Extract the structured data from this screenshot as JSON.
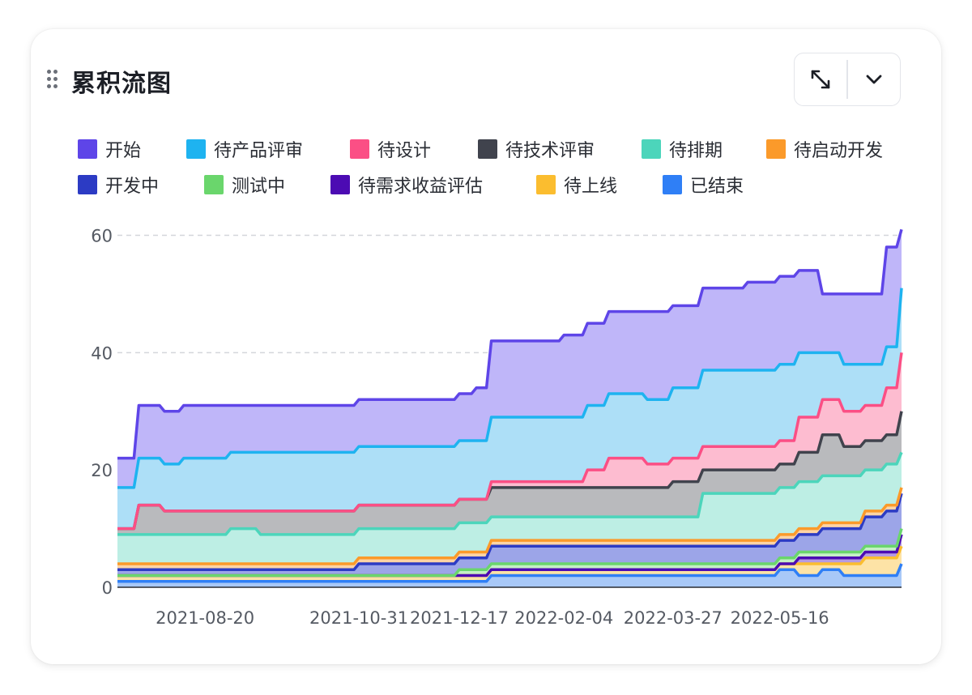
{
  "card": {
    "title": "累积流图"
  },
  "icons": {
    "drag": "drag-handle-icon",
    "expand": "expand-arrows-icon",
    "collapse": "chevron-down-icon"
  },
  "chart_data": {
    "type": "area",
    "stacked": true,
    "title": "累积流图",
    "xlabel": "",
    "ylabel": "",
    "ylim": [
      0,
      62
    ],
    "yticks": [
      0,
      20,
      40,
      60
    ],
    "grid": true,
    "legend_position": "top",
    "x": [
      "2021-07-10",
      "2021-07-20",
      "2021-08-01",
      "2021-08-10",
      "2021-08-20",
      "2021-09-01",
      "2021-09-15",
      "2021-10-01",
      "2021-10-15",
      "2021-10-31",
      "2021-11-15",
      "2021-12-01",
      "2021-12-17",
      "2021-12-25",
      "2022-01-01",
      "2022-01-10",
      "2022-01-20",
      "2022-02-04",
      "2022-02-15",
      "2022-02-25",
      "2022-03-05",
      "2022-03-15",
      "2022-03-27",
      "2022-04-10",
      "2022-04-20",
      "2022-05-01",
      "2022-05-16",
      "2022-05-25",
      "2022-06-05",
      "2022-06-15",
      "2022-06-25",
      "2022-07-05",
      "2022-07-12"
    ],
    "xtick_labels": [
      "2021-08-20",
      "2021-10-31",
      "2021-12-17",
      "2022-02-04",
      "2022-03-27",
      "2022-05-16"
    ],
    "series": [
      {
        "name": "已结束",
        "color": "#2f7ff6",
        "fill": "#a8c8f7",
        "values": [
          1,
          1,
          1,
          1,
          1,
          1,
          1,
          1,
          1,
          1,
          1,
          1,
          1,
          1,
          2,
          2,
          2,
          2,
          2,
          2,
          2,
          2,
          2,
          2,
          2,
          2,
          3,
          2,
          3,
          2,
          2,
          2,
          4
        ]
      },
      {
        "name": "待上线",
        "color": "#fbbd2f",
        "fill": "#fde3a6",
        "values": [
          1,
          1,
          1,
          1,
          1,
          1,
          1,
          1,
          1,
          1,
          1,
          1,
          1,
          1,
          1,
          1,
          1,
          1,
          1,
          1,
          1,
          1,
          1,
          1,
          1,
          1,
          1,
          2,
          1,
          2,
          3,
          3,
          3
        ]
      },
      {
        "name": "待需求收益评估",
        "color": "#4c0bb3",
        "fill": "#b59ae3",
        "values": [
          0,
          0,
          0,
          0,
          0,
          0,
          0,
          0,
          0,
          0,
          0,
          0,
          0,
          0,
          0,
          0,
          0,
          0,
          0,
          0,
          0,
          0,
          0,
          0,
          0,
          0,
          0,
          1,
          1,
          1,
          1,
          1,
          2
        ]
      },
      {
        "name": "测试中",
        "color": "#6ad66c",
        "fill": "#c5f0c6",
        "values": [
          0,
          0,
          0,
          0,
          0,
          0,
          0,
          0,
          0,
          0,
          0,
          0,
          1,
          1,
          1,
          1,
          1,
          1,
          1,
          1,
          1,
          1,
          1,
          1,
          1,
          1,
          1,
          1,
          1,
          1,
          1,
          1,
          1
        ]
      },
      {
        "name": "开发中",
        "color": "#2c3bc4",
        "fill": "#9ca5e8",
        "values": [
          1,
          1,
          1,
          1,
          1,
          1,
          1,
          1,
          1,
          2,
          2,
          2,
          2,
          2,
          3,
          3,
          3,
          3,
          3,
          3,
          3,
          3,
          3,
          3,
          3,
          3,
          3,
          3,
          4,
          4,
          5,
          6,
          6
        ]
      },
      {
        "name": "待启动开发",
        "color": "#fb9a2a",
        "fill": "#fdd4a5",
        "values": [
          1,
          1,
          1,
          1,
          1,
          1,
          1,
          1,
          1,
          1,
          1,
          1,
          1,
          1,
          1,
          1,
          1,
          1,
          1,
          1,
          1,
          1,
          1,
          1,
          1,
          1,
          1,
          1,
          1,
          1,
          1,
          1,
          1
        ]
      },
      {
        "name": "待排期",
        "color": "#4cd5bb",
        "fill": "#bdeee4",
        "values": [
          5,
          5,
          5,
          5,
          5,
          6,
          5,
          5,
          5,
          5,
          5,
          5,
          5,
          5,
          4,
          4,
          4,
          4,
          4,
          4,
          4,
          4,
          4,
          8,
          8,
          8,
          8,
          8,
          8,
          8,
          7,
          7,
          6
        ]
      },
      {
        "name": "待技术评审",
        "color": "#40434d",
        "fill": "#b9babd",
        "values": [
          1,
          5,
          4,
          4,
          4,
          3,
          4,
          4,
          4,
          4,
          4,
          4,
          4,
          4,
          5,
          5,
          5,
          5,
          5,
          5,
          5,
          5,
          6,
          4,
          4,
          4,
          4,
          5,
          7,
          5,
          5,
          5,
          7
        ]
      },
      {
        "name": "待设计",
        "color": "#fb4f85",
        "fill": "#fdbcd0",
        "values": [
          0,
          0,
          0,
          0,
          0,
          0,
          0,
          0,
          0,
          0,
          0,
          0,
          0,
          0,
          1,
          1,
          1,
          1,
          3,
          5,
          5,
          4,
          4,
          4,
          4,
          4,
          4,
          6,
          6,
          6,
          6,
          8,
          10
        ]
      },
      {
        "name": "待产品评审",
        "color": "#1eb3f0",
        "fill": "#addff7",
        "values": [
          7,
          8,
          8,
          9,
          9,
          10,
          10,
          10,
          10,
          10,
          10,
          10,
          10,
          10,
          11,
          11,
          11,
          11,
          11,
          11,
          11,
          11,
          12,
          13,
          13,
          13,
          13,
          11,
          8,
          8,
          7,
          7,
          11
        ]
      },
      {
        "name": "开始",
        "color": "#5e45e8",
        "fill": "#bfb6f9",
        "values": [
          5,
          9,
          9,
          9,
          9,
          8,
          8,
          8,
          8,
          8,
          8,
          8,
          8,
          9,
          13,
          13,
          13,
          14,
          14,
          14,
          14,
          15,
          14,
          14,
          14,
          15,
          15,
          14,
          10,
          12,
          12,
          17,
          10
        ]
      }
    ],
    "legend": [
      {
        "name": "开始",
        "color": "#5e45e8"
      },
      {
        "name": "待产品评审",
        "color": "#1eb3f0"
      },
      {
        "name": "待设计",
        "color": "#fb4f85"
      },
      {
        "name": "待技术评审",
        "color": "#40434d"
      },
      {
        "name": "待排期",
        "color": "#4cd5bb"
      },
      {
        "name": "待启动开发",
        "color": "#fb9a2a"
      },
      {
        "name": "开发中",
        "color": "#2c3bc4"
      },
      {
        "name": "测试中",
        "color": "#6ad66c"
      },
      {
        "name": "待需求收益评估",
        "color": "#4c0bb3"
      },
      {
        "name": "待上线",
        "color": "#fbbd2f"
      },
      {
        "name": "已结束",
        "color": "#2f7ff6"
      }
    ]
  }
}
